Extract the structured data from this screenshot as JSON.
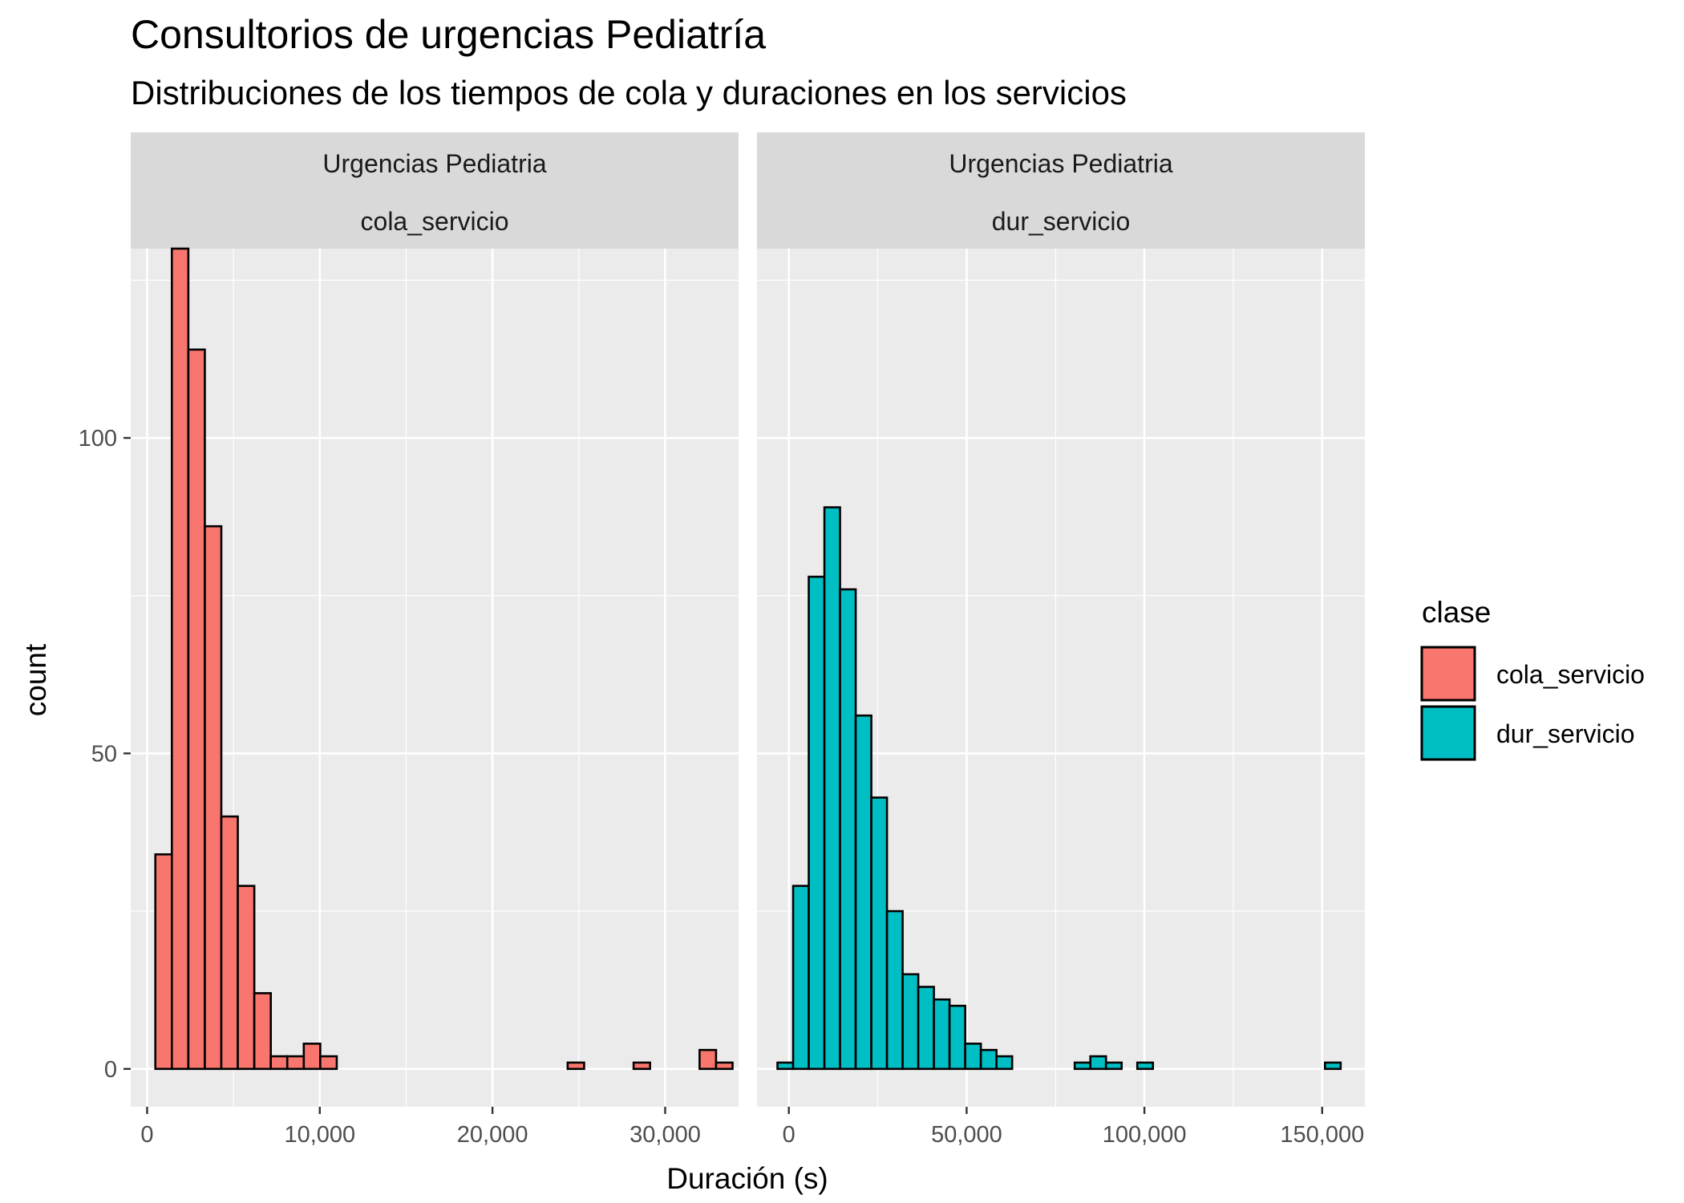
{
  "chart_data": {
    "type": "bar",
    "title": "Consultorios de urgencias Pediatría",
    "subtitle": "Distribuciones de los tiempos de cola y duraciones en los servicios",
    "xlabel": "Duración (s)",
    "ylabel": "count",
    "ylim": [
      -6,
      130
    ],
    "yticks": [
      0,
      50,
      100
    ],
    "ytick_labels": [
      "0",
      "50",
      "100"
    ],
    "grid": true,
    "legend": {
      "title": "clase",
      "placement": "right",
      "entries": [
        {
          "label": "cola_servicio",
          "color": "#F8766D"
        },
        {
          "label": "dur_servicio",
          "color": "#00BFC4"
        }
      ]
    },
    "panels": [
      {
        "strip_top": "Urgencias Pediatria",
        "strip_bottom": "cola_servicio",
        "fill": "#F8766D",
        "xlim": [
          -950,
          34250
        ],
        "xticks": [
          0,
          10000,
          20000,
          30000
        ],
        "xtick_labels": [
          "0",
          "10,000",
          "20,000",
          "30,000"
        ],
        "binwidth": 955,
        "bin_centers": [
          955,
          1910,
          2865,
          3820,
          4775,
          5730,
          6685,
          7640,
          8595,
          9550,
          10505,
          11460,
          12415,
          13370,
          14325,
          15280,
          16235,
          17190,
          18145,
          19100,
          20055,
          21010,
          21965,
          22920,
          23875,
          24830,
          25785,
          26740,
          27695,
          28650,
          29605,
          30560,
          31515,
          32470,
          33425
        ],
        "counts": [
          34,
          130,
          114,
          86,
          40,
          29,
          12,
          2,
          2,
          4,
          2,
          0,
          0,
          0,
          0,
          0,
          0,
          0,
          0,
          0,
          0,
          0,
          0,
          0,
          0,
          1,
          0,
          0,
          0,
          1,
          0,
          0,
          0,
          3,
          1
        ]
      },
      {
        "strip_top": "Urgencias Pediatria",
        "strip_bottom": "dur_servicio",
        "fill": "#00BFC4",
        "xlim": [
          -8960,
          162000
        ],
        "xticks": [
          0,
          50000,
          100000,
          150000
        ],
        "xtick_labels": [
          "0",
          "50,000",
          "100,000",
          "150,000"
        ],
        "binwidth": 4400,
        "bin_centers": [
          -1000,
          3400,
          7800,
          12200,
          16600,
          21000,
          25400,
          29800,
          34200,
          38600,
          43000,
          47400,
          51800,
          56200,
          60600,
          65000,
          69400,
          73800,
          78200,
          82600,
          87000,
          91400,
          95800,
          100200,
          104600,
          109000,
          113400,
          117800,
          122200,
          126600,
          131000,
          135400,
          139800,
          144200,
          148600,
          153000
        ],
        "counts": [
          1,
          29,
          78,
          89,
          76,
          56,
          43,
          25,
          15,
          13,
          11,
          10,
          4,
          3,
          2,
          0,
          0,
          0,
          0,
          1,
          2,
          1,
          0,
          1,
          0,
          0,
          0,
          0,
          0,
          0,
          0,
          0,
          0,
          0,
          0,
          1
        ]
      }
    ]
  }
}
